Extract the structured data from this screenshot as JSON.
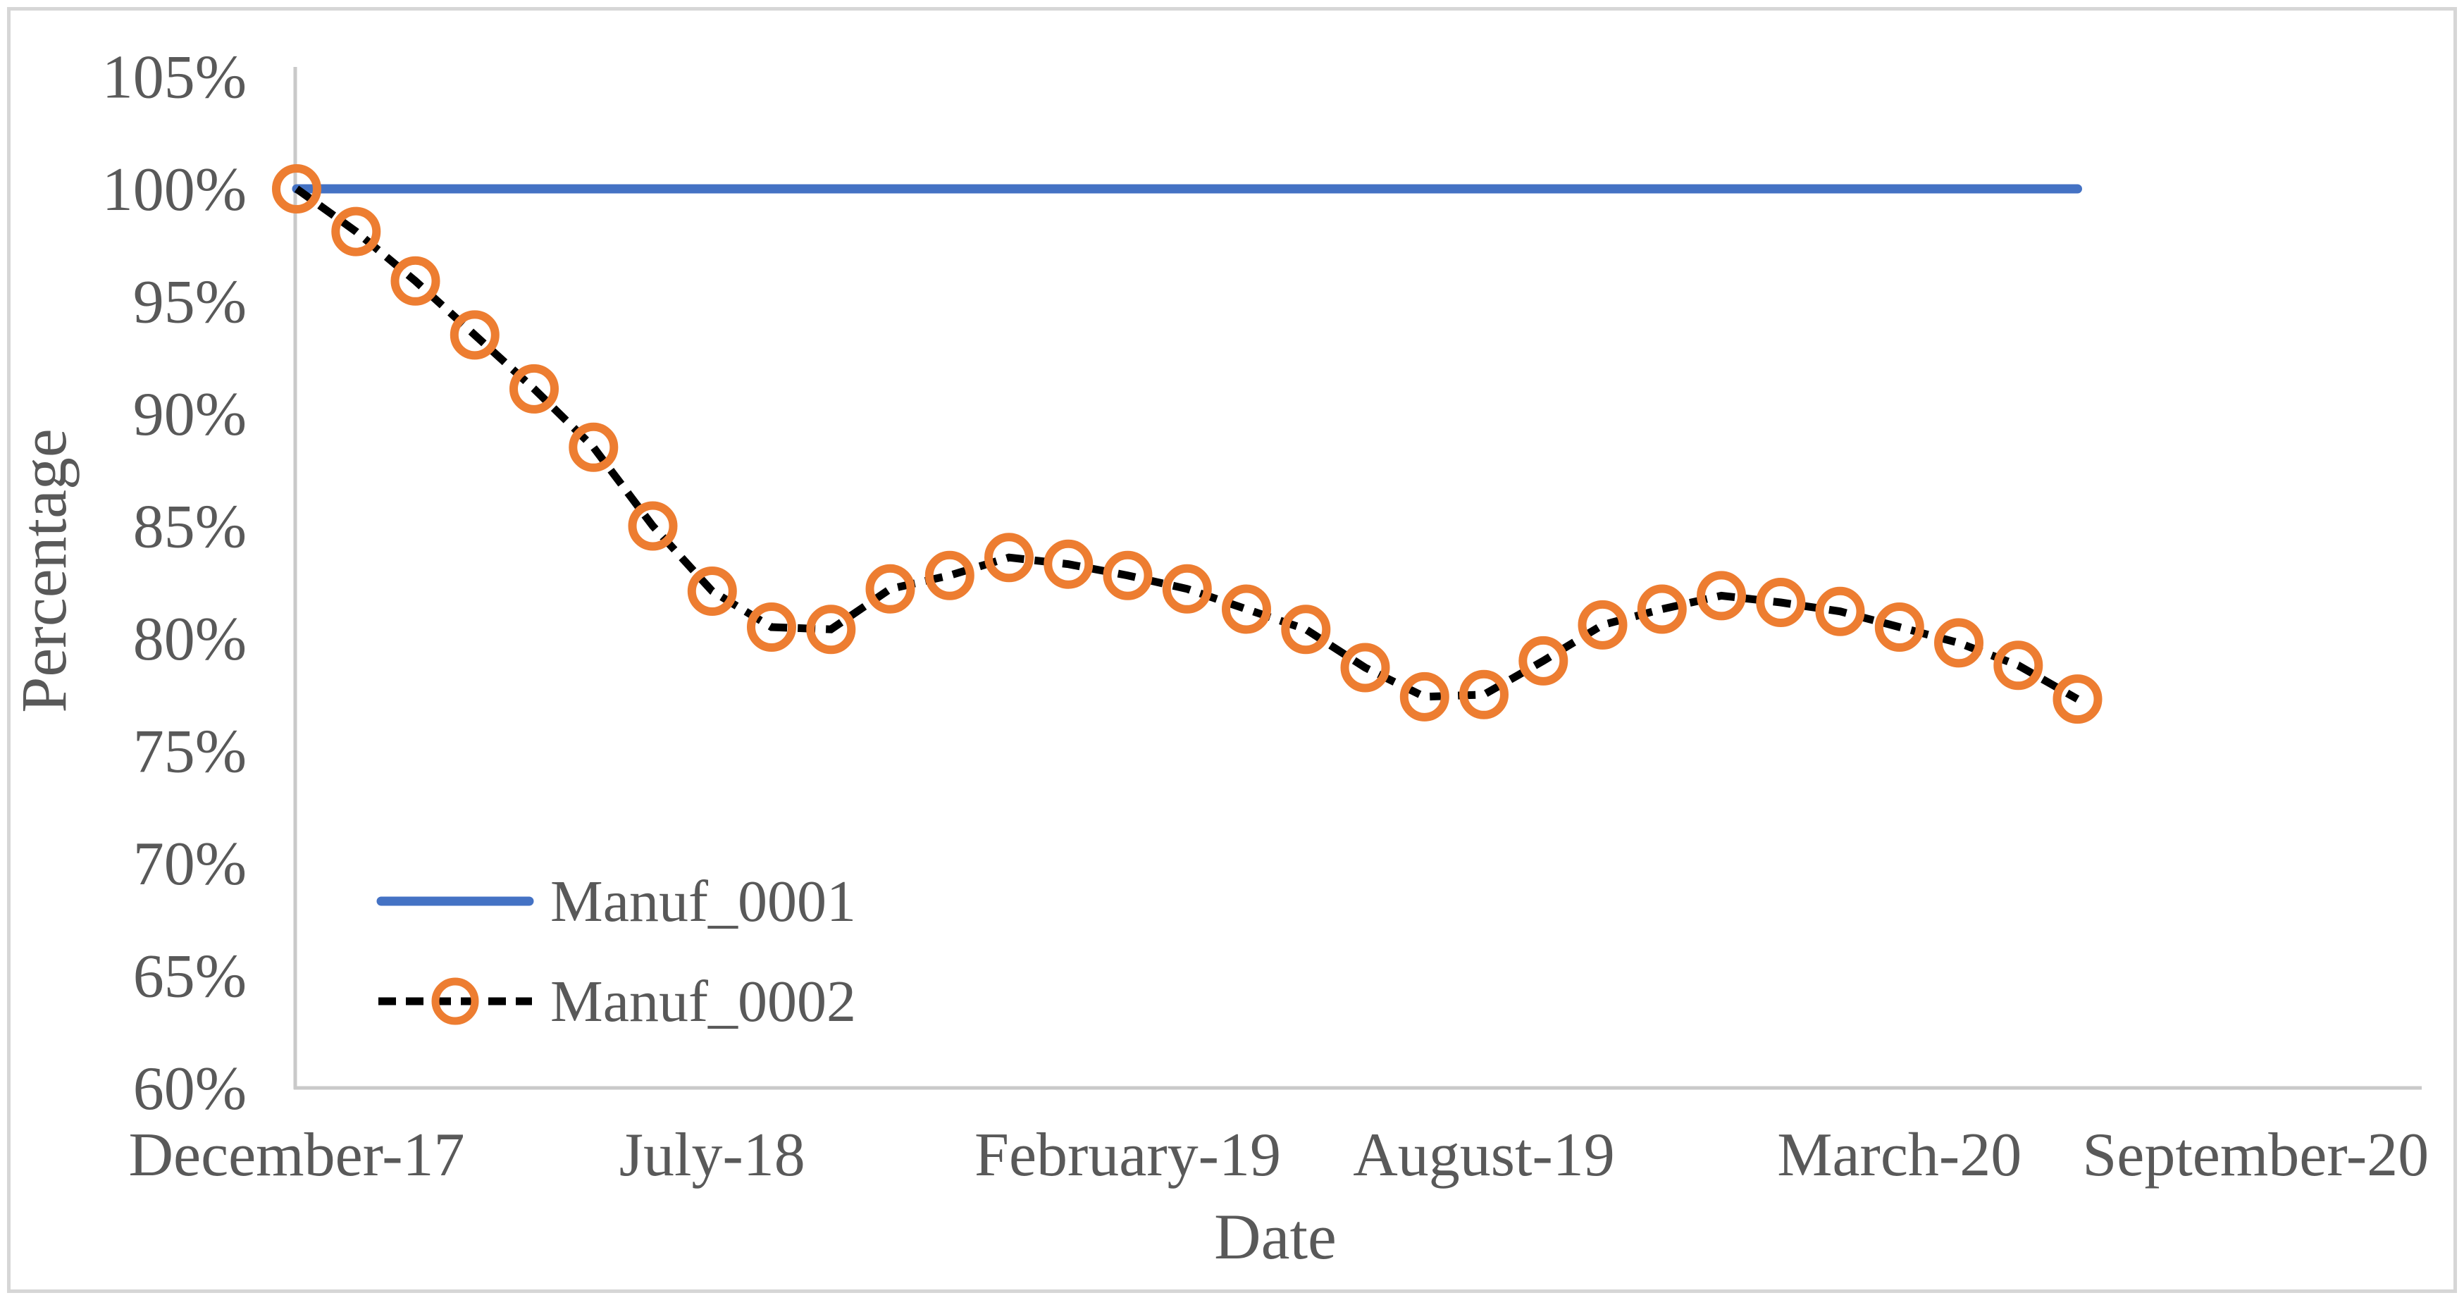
{
  "colors": {
    "series1_blue": "#4472C4",
    "series2_marker_orange": "#ED7D31",
    "series2_line_black": "#000000",
    "text_gray": "#595959"
  },
  "chart_data": {
    "type": "line",
    "title": "",
    "xlabel": "Date",
    "ylabel": "Percentage",
    "grid": false,
    "legend_position": "inside-lower-left",
    "ylim": [
      60,
      105
    ],
    "y_ticks": [
      "105%",
      "100%",
      "95%",
      "90%",
      "85%",
      "80%",
      "75%",
      "70%",
      "65%",
      "60%"
    ],
    "x_tick_labels": [
      "December-17",
      "July-18",
      "February-19",
      "August-19",
      "March-20",
      "September-20"
    ],
    "x_tick_month_index": [
      0,
      7,
      14,
      20,
      27,
      33
    ],
    "x_months": [
      "Dec-17",
      "Jan-18",
      "Feb-18",
      "Mar-18",
      "Apr-18",
      "May-18",
      "Jun-18",
      "Jul-18",
      "Aug-18",
      "Sep-18",
      "Oct-18",
      "Nov-18",
      "Dec-18",
      "Jan-19",
      "Feb-19",
      "Mar-19",
      "Apr-19",
      "May-19",
      "Jun-19",
      "Jul-19",
      "Aug-19",
      "Sep-19",
      "Oct-19",
      "Nov-19",
      "Dec-19",
      "Jan-20",
      "Feb-20",
      "Mar-20",
      "Apr-20",
      "May-20",
      "Jun-20"
    ],
    "series": [
      {
        "name": "Manuf_0001",
        "color": "#4472C4",
        "style": "solid",
        "values": [
          100,
          100,
          100,
          100,
          100,
          100,
          100,
          100,
          100,
          100,
          100,
          100,
          100,
          100,
          100,
          100,
          100,
          100,
          100,
          100,
          100,
          100,
          100,
          100,
          100,
          100,
          100,
          100,
          100,
          100,
          100
        ]
      },
      {
        "name": "Manuf_0002",
        "color": "#ED7D31",
        "line_color": "#000000",
        "style": "dashed-circle",
        "values": [
          100.0,
          98.1,
          95.9,
          93.5,
          91.1,
          88.5,
          85.0,
          82.1,
          80.5,
          80.4,
          82.2,
          82.8,
          83.6,
          83.3,
          82.8,
          82.2,
          81.3,
          80.4,
          78.7,
          77.4,
          77.5,
          79.0,
          80.6,
          81.3,
          81.9,
          81.6,
          81.2,
          80.5,
          79.8,
          78.8,
          77.3
        ]
      }
    ]
  }
}
